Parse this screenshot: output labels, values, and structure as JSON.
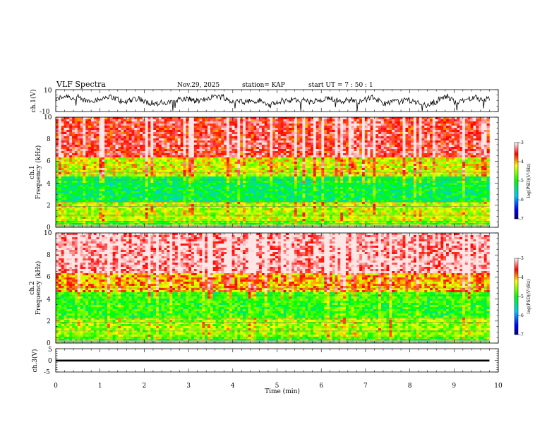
{
  "chart_data": {
    "type": "heatmap",
    "title": "VLF Spectra",
    "date": "Nov.29, 2025",
    "station": "station= KAP",
    "start_time": "start  UT  =   7 : 50 : 1",
    "xlabel": "Time  (min)",
    "xlim": [
      0,
      10
    ],
    "x_ticks": [
      "0",
      "1",
      "2",
      "3",
      "4",
      "5",
      "6",
      "7",
      "8",
      "9",
      "10"
    ],
    "data_end_min": 9.8,
    "panels": [
      {
        "name": "ch1-waveform",
        "type": "line",
        "ylabel": "ch.1(V)",
        "ylim": [
          -10,
          10
        ],
        "y_ticks": [
          "10",
          "-10"
        ],
        "mean_level": 0,
        "amplitude": 5
      },
      {
        "name": "ch1-spectrogram",
        "type": "heatmap",
        "ylabel_channel": "ch.1",
        "ylabel": "Frequency  (kHz)",
        "ylim": [
          0,
          10
        ],
        "y_ticks": [
          "0",
          "2",
          "4",
          "6",
          "8",
          "10"
        ],
        "color_label": "log(PSD)(V²/Hz)",
        "clim": [
          -7,
          -3
        ],
        "cbar_ticks": [
          "-3",
          "-4",
          "-5",
          "-6",
          "-7"
        ],
        "low_band_level": -4.5,
        "mid_band_level": -5.3,
        "high_band_level": -3.6
      },
      {
        "name": "ch2-spectrogram",
        "type": "heatmap",
        "ylabel_channel": "ch.2",
        "ylabel": "Frequency  (kHz)",
        "ylim": [
          0,
          10
        ],
        "y_ticks": [
          "0",
          "2",
          "4",
          "6",
          "8",
          "10"
        ],
        "color_label": "log(PSD)(V²/Hz)",
        "clim": [
          -7,
          -3
        ],
        "cbar_ticks": [
          "-3",
          "-4",
          "-5",
          "-6",
          "-7"
        ],
        "low_band_level": -4.6,
        "mid_band_level": -5.0,
        "high_band_level": -3.3
      },
      {
        "name": "ch3-waveform",
        "type": "line",
        "ylabel": "ch.3(V)",
        "ylim": [
          -5,
          5
        ],
        "y_ticks": [
          "5",
          "0",
          "-5"
        ],
        "mean_level": -0.1,
        "amplitude": 0.4
      }
    ]
  }
}
